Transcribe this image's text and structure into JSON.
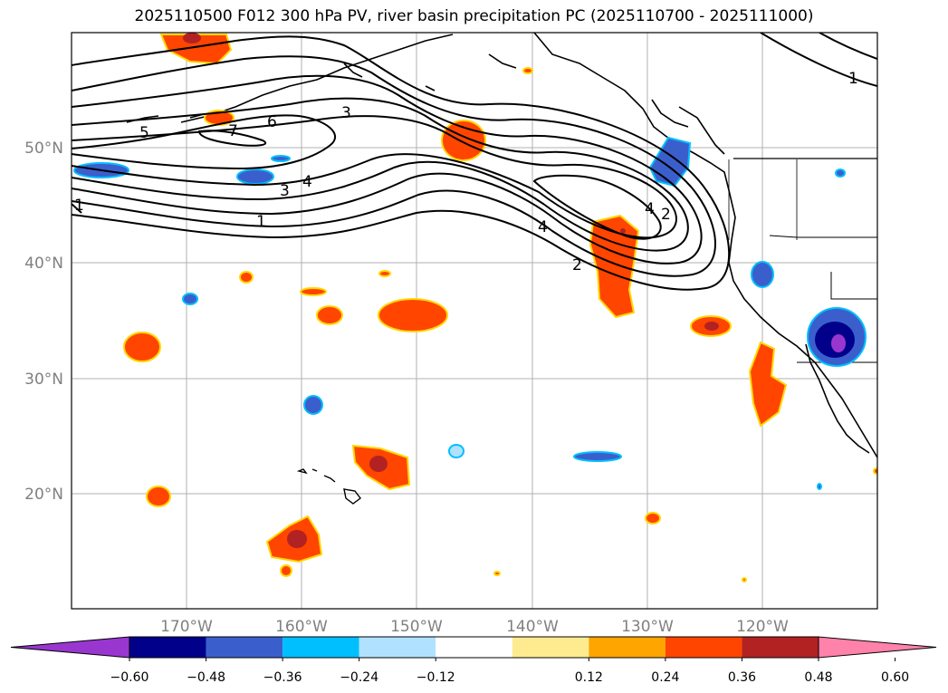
{
  "title": "2025110500 F012 300 hPa PV, river basin precipitation PC (2025110700 - 2025111000)",
  "map": {
    "lon_range": [
      -180,
      -110
    ],
    "lat_range": [
      10,
      60
    ],
    "lat_ticks": [
      {
        "lat": 50,
        "label": "50°N"
      },
      {
        "lat": 40,
        "label": "40°N"
      },
      {
        "lat": 30,
        "label": "30°N"
      },
      {
        "lat": 20,
        "label": "20°N"
      }
    ],
    "lon_ticks": [
      {
        "lon": -170,
        "label": "170°W"
      },
      {
        "lon": -160,
        "label": "160°W"
      },
      {
        "lon": -150,
        "label": "150°W"
      },
      {
        "lon": -140,
        "label": "140°W"
      },
      {
        "lon": -130,
        "label": "130°W"
      },
      {
        "lon": -120,
        "label": "120°W"
      }
    ],
    "grid": true
  },
  "colorbar": {
    "colors": [
      "#9a36d0",
      "#00008b",
      "#3a5fcd",
      "#00bfff",
      "#b0e2ff",
      "#ffffff",
      "#ffeb8f",
      "#ffa500",
      "#ff4500",
      "#b22222",
      "#ff82ab"
    ],
    "labels": [
      "−0.60",
      "−0.48",
      "−0.36",
      "−0.24",
      "−0.12",
      "0.12",
      "0.24",
      "0.36",
      "0.48",
      "0.60"
    ]
  },
  "contour_labels": [
    "1",
    "2",
    "3",
    "4",
    "5",
    "6",
    "7",
    "3",
    "4",
    "2",
    "4",
    "1",
    "1"
  ],
  "colors": {
    "positive": "#ff4500",
    "positive_core": "#b22222",
    "negative": "#3a5fcd",
    "negative_core": "#00008b"
  }
}
